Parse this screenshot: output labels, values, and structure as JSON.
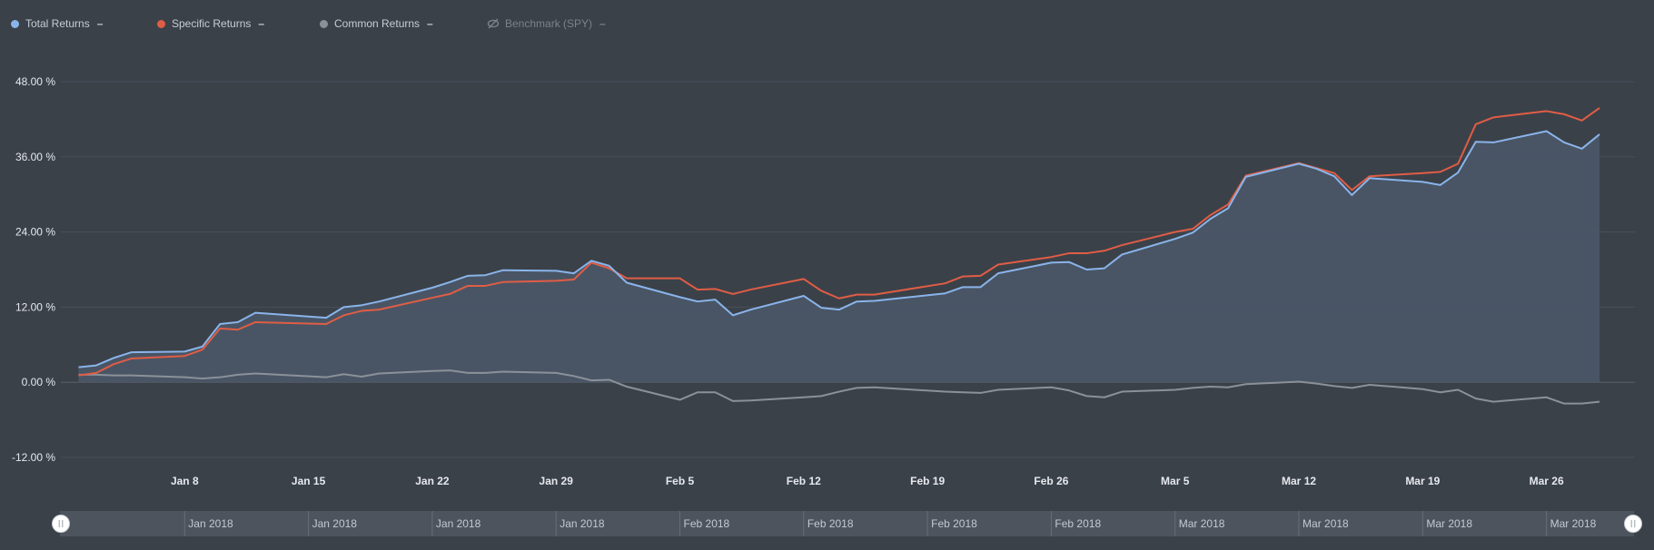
{
  "legend": [
    {
      "label": "Total Returns",
      "dash": "–",
      "color": "#8ab4ea",
      "hidden": false
    },
    {
      "label": "Specific Returns",
      "dash": "–",
      "color": "#e05d45",
      "hidden": false
    },
    {
      "label": "Common Returns",
      "dash": "–",
      "color": "#8b9199",
      "hidden": false
    },
    {
      "label": "Benchmark (SPY)",
      "dash": "–",
      "color": "#7b828c",
      "hidden": true
    }
  ],
  "chart_data": {
    "type": "line",
    "x_unit": "date",
    "xlim": [
      "2018-01-01",
      "2018-03-31"
    ],
    "ylim": [
      -12,
      48
    ],
    "y_ticks": [
      {
        "value": 48,
        "label": "48.00 %"
      },
      {
        "value": 36,
        "label": "36.00 %"
      },
      {
        "value": 24,
        "label": "24.00 %"
      },
      {
        "value": 12,
        "label": "12.00 %"
      },
      {
        "value": 0,
        "label": "0.00 %"
      },
      {
        "value": -12,
        "label": "-12.00 %"
      }
    ],
    "x_ticks": [
      {
        "date": "2018-01-08",
        "label": "Jan 8"
      },
      {
        "date": "2018-01-15",
        "label": "Jan 15"
      },
      {
        "date": "2018-01-22",
        "label": "Jan 22"
      },
      {
        "date": "2018-01-29",
        "label": "Jan 29"
      },
      {
        "date": "2018-02-05",
        "label": "Feb 5"
      },
      {
        "date": "2018-02-12",
        "label": "Feb 12"
      },
      {
        "date": "2018-02-19",
        "label": "Feb 19"
      },
      {
        "date": "2018-02-26",
        "label": "Feb 26"
      },
      {
        "date": "2018-03-05",
        "label": "Mar 5"
      },
      {
        "date": "2018-03-12",
        "label": "Mar 12"
      },
      {
        "date": "2018-03-19",
        "label": "Mar 19"
      },
      {
        "date": "2018-03-26",
        "label": "Mar 26"
      }
    ],
    "grid": true,
    "legend_position": "top-left",
    "series": [
      {
        "name": "Total Returns",
        "color": "#8ab4ea",
        "area": true,
        "points": [
          [
            "2018-01-02",
            2.4
          ],
          [
            "2018-01-03",
            2.7
          ],
          [
            "2018-01-04",
            3.9
          ],
          [
            "2018-01-05",
            4.8
          ],
          [
            "2018-01-08",
            4.9
          ],
          [
            "2018-01-09",
            5.7
          ],
          [
            "2018-01-10",
            9.3
          ],
          [
            "2018-01-11",
            9.6
          ],
          [
            "2018-01-12",
            11.1
          ],
          [
            "2018-01-16",
            10.3
          ],
          [
            "2018-01-17",
            12.0
          ],
          [
            "2018-01-18",
            12.3
          ],
          [
            "2018-01-19",
            12.9
          ],
          [
            "2018-01-22",
            15.1
          ],
          [
            "2018-01-23",
            16.0
          ],
          [
            "2018-01-24",
            17.0
          ],
          [
            "2018-01-25",
            17.1
          ],
          [
            "2018-01-26",
            17.9
          ],
          [
            "2018-01-29",
            17.8
          ],
          [
            "2018-01-30",
            17.4
          ],
          [
            "2018-01-31",
            19.4
          ],
          [
            "2018-02-01",
            18.6
          ],
          [
            "2018-02-02",
            15.9
          ],
          [
            "2018-02-05",
            13.6
          ],
          [
            "2018-02-06",
            12.9
          ],
          [
            "2018-02-07",
            13.2
          ],
          [
            "2018-02-08",
            10.7
          ],
          [
            "2018-02-09",
            11.6
          ],
          [
            "2018-02-12",
            13.8
          ],
          [
            "2018-02-13",
            11.9
          ],
          [
            "2018-02-14",
            11.6
          ],
          [
            "2018-02-15",
            12.9
          ],
          [
            "2018-02-16",
            13.0
          ],
          [
            "2018-02-20",
            14.2
          ],
          [
            "2018-02-21",
            15.2
          ],
          [
            "2018-02-22",
            15.2
          ],
          [
            "2018-02-23",
            17.4
          ],
          [
            "2018-02-26",
            19.1
          ],
          [
            "2018-02-27",
            19.2
          ],
          [
            "2018-02-28",
            18.0
          ],
          [
            "2018-03-01",
            18.2
          ],
          [
            "2018-03-02",
            20.4
          ],
          [
            "2018-03-05",
            22.9
          ],
          [
            "2018-03-06",
            23.9
          ],
          [
            "2018-03-07",
            26.1
          ],
          [
            "2018-03-08",
            27.8
          ],
          [
            "2018-03-09",
            32.8
          ],
          [
            "2018-03-12",
            34.9
          ],
          [
            "2018-03-13",
            34.1
          ],
          [
            "2018-03-14",
            32.9
          ],
          [
            "2018-03-15",
            29.9
          ],
          [
            "2018-03-16",
            32.6
          ],
          [
            "2018-03-19",
            32.0
          ],
          [
            "2018-03-20",
            31.5
          ],
          [
            "2018-03-21",
            33.5
          ],
          [
            "2018-03-22",
            38.4
          ],
          [
            "2018-03-23",
            38.3
          ],
          [
            "2018-03-26",
            40.1
          ],
          [
            "2018-03-27",
            38.3
          ],
          [
            "2018-03-28",
            37.3
          ],
          [
            "2018-03-29",
            39.6
          ]
        ]
      },
      {
        "name": "Specific Returns",
        "color": "#e05d45",
        "area": false,
        "points": [
          [
            "2018-01-02",
            1.1
          ],
          [
            "2018-01-03",
            1.5
          ],
          [
            "2018-01-04",
            2.9
          ],
          [
            "2018-01-05",
            3.8
          ],
          [
            "2018-01-08",
            4.2
          ],
          [
            "2018-01-09",
            5.2
          ],
          [
            "2018-01-10",
            8.6
          ],
          [
            "2018-01-11",
            8.4
          ],
          [
            "2018-01-12",
            9.6
          ],
          [
            "2018-01-16",
            9.3
          ],
          [
            "2018-01-17",
            10.7
          ],
          [
            "2018-01-18",
            11.4
          ],
          [
            "2018-01-19",
            11.6
          ],
          [
            "2018-01-22",
            13.5
          ],
          [
            "2018-01-23",
            14.1
          ],
          [
            "2018-01-24",
            15.4
          ],
          [
            "2018-01-25",
            15.4
          ],
          [
            "2018-01-26",
            16.0
          ],
          [
            "2018-01-29",
            16.2
          ],
          [
            "2018-01-30",
            16.4
          ],
          [
            "2018-01-31",
            19.1
          ],
          [
            "2018-02-01",
            18.2
          ],
          [
            "2018-02-02",
            16.6
          ],
          [
            "2018-02-05",
            16.6
          ],
          [
            "2018-02-06",
            14.8
          ],
          [
            "2018-02-07",
            14.9
          ],
          [
            "2018-02-08",
            14.1
          ],
          [
            "2018-02-09",
            14.8
          ],
          [
            "2018-02-12",
            16.5
          ],
          [
            "2018-02-13",
            14.6
          ],
          [
            "2018-02-14",
            13.4
          ],
          [
            "2018-02-15",
            14.0
          ],
          [
            "2018-02-16",
            14.0
          ],
          [
            "2018-02-20",
            15.8
          ],
          [
            "2018-02-21",
            16.9
          ],
          [
            "2018-02-22",
            17.0
          ],
          [
            "2018-02-23",
            18.8
          ],
          [
            "2018-02-26",
            20.0
          ],
          [
            "2018-02-27",
            20.6
          ],
          [
            "2018-02-28",
            20.6
          ],
          [
            "2018-03-01",
            21.0
          ],
          [
            "2018-03-02",
            21.9
          ],
          [
            "2018-03-05",
            24.0
          ],
          [
            "2018-03-06",
            24.5
          ],
          [
            "2018-03-07",
            26.7
          ],
          [
            "2018-03-08",
            28.4
          ],
          [
            "2018-03-09",
            33.0
          ],
          [
            "2018-03-12",
            35.0
          ],
          [
            "2018-03-13",
            34.2
          ],
          [
            "2018-03-14",
            33.4
          ],
          [
            "2018-03-15",
            30.7
          ],
          [
            "2018-03-16",
            32.9
          ],
          [
            "2018-03-19",
            33.4
          ],
          [
            "2018-03-20",
            33.6
          ],
          [
            "2018-03-21",
            34.9
          ],
          [
            "2018-03-22",
            41.2
          ],
          [
            "2018-03-23",
            42.3
          ],
          [
            "2018-03-26",
            43.3
          ],
          [
            "2018-03-27",
            42.8
          ],
          [
            "2018-03-28",
            41.8
          ],
          [
            "2018-03-29",
            43.8
          ]
        ]
      },
      {
        "name": "Common Returns",
        "color": "#8b9199",
        "area": false,
        "points": [
          [
            "2018-01-02",
            1.2
          ],
          [
            "2018-01-03",
            1.2
          ],
          [
            "2018-01-04",
            1.1
          ],
          [
            "2018-01-05",
            1.1
          ],
          [
            "2018-01-08",
            0.8
          ],
          [
            "2018-01-09",
            0.6
          ],
          [
            "2018-01-10",
            0.8
          ],
          [
            "2018-01-11",
            1.2
          ],
          [
            "2018-01-12",
            1.4
          ],
          [
            "2018-01-16",
            0.8
          ],
          [
            "2018-01-17",
            1.3
          ],
          [
            "2018-01-18",
            0.9
          ],
          [
            "2018-01-19",
            1.4
          ],
          [
            "2018-01-22",
            1.8
          ],
          [
            "2018-01-23",
            1.9
          ],
          [
            "2018-01-24",
            1.5
          ],
          [
            "2018-01-25",
            1.5
          ],
          [
            "2018-01-26",
            1.7
          ],
          [
            "2018-01-29",
            1.5
          ],
          [
            "2018-01-30",
            1.0
          ],
          [
            "2018-01-31",
            0.3
          ],
          [
            "2018-02-01",
            0.4
          ],
          [
            "2018-02-02",
            -0.7
          ],
          [
            "2018-02-05",
            -2.8
          ],
          [
            "2018-02-06",
            -1.6
          ],
          [
            "2018-02-07",
            -1.6
          ],
          [
            "2018-02-08",
            -3.0
          ],
          [
            "2018-02-09",
            -2.9
          ],
          [
            "2018-02-12",
            -2.4
          ],
          [
            "2018-02-13",
            -2.2
          ],
          [
            "2018-02-14",
            -1.5
          ],
          [
            "2018-02-15",
            -0.9
          ],
          [
            "2018-02-16",
            -0.8
          ],
          [
            "2018-02-20",
            -1.5
          ],
          [
            "2018-02-21",
            -1.6
          ],
          [
            "2018-02-22",
            -1.7
          ],
          [
            "2018-02-23",
            -1.2
          ],
          [
            "2018-02-26",
            -0.8
          ],
          [
            "2018-02-27",
            -1.3
          ],
          [
            "2018-02-28",
            -2.2
          ],
          [
            "2018-03-01",
            -2.4
          ],
          [
            "2018-03-02",
            -1.5
          ],
          [
            "2018-03-05",
            -1.2
          ],
          [
            "2018-03-06",
            -0.9
          ],
          [
            "2018-03-07",
            -0.7
          ],
          [
            "2018-03-08",
            -0.8
          ],
          [
            "2018-03-09",
            -0.3
          ],
          [
            "2018-03-12",
            0.1
          ],
          [
            "2018-03-13",
            -0.2
          ],
          [
            "2018-03-14",
            -0.6
          ],
          [
            "2018-03-15",
            -0.9
          ],
          [
            "2018-03-16",
            -0.4
          ],
          [
            "2018-03-19",
            -1.1
          ],
          [
            "2018-03-20",
            -1.6
          ],
          [
            "2018-03-21",
            -1.2
          ],
          [
            "2018-03-22",
            -2.6
          ],
          [
            "2018-03-23",
            -3.1
          ],
          [
            "2018-03-26",
            -2.4
          ],
          [
            "2018-03-27",
            -3.4
          ],
          [
            "2018-03-28",
            -3.4
          ],
          [
            "2018-03-29",
            -3.1
          ]
        ]
      }
    ]
  },
  "navigator": {
    "labels": [
      {
        "date": "2018-01-08",
        "label": "Jan 2018"
      },
      {
        "date": "2018-01-15",
        "label": "Jan 2018"
      },
      {
        "date": "2018-01-22",
        "label": "Jan 2018"
      },
      {
        "date": "2018-01-29",
        "label": "Jan 2018"
      },
      {
        "date": "2018-02-05",
        "label": "Feb 2018"
      },
      {
        "date": "2018-02-12",
        "label": "Feb 2018"
      },
      {
        "date": "2018-02-19",
        "label": "Feb 2018"
      },
      {
        "date": "2018-02-26",
        "label": "Feb 2018"
      },
      {
        "date": "2018-03-05",
        "label": "Mar 2018"
      },
      {
        "date": "2018-03-12",
        "label": "Mar 2018"
      },
      {
        "date": "2018-03-19",
        "label": "Mar 2018"
      },
      {
        "date": "2018-03-26",
        "label": "Mar 2018"
      }
    ]
  },
  "colors": {
    "background": "#3b4149",
    "grid": "#4a5059",
    "zero_line": "#5a616b",
    "area_fill": "#4a5667",
    "navigator_bg": "#4d545e",
    "navigator_sep": "#666d77"
  }
}
